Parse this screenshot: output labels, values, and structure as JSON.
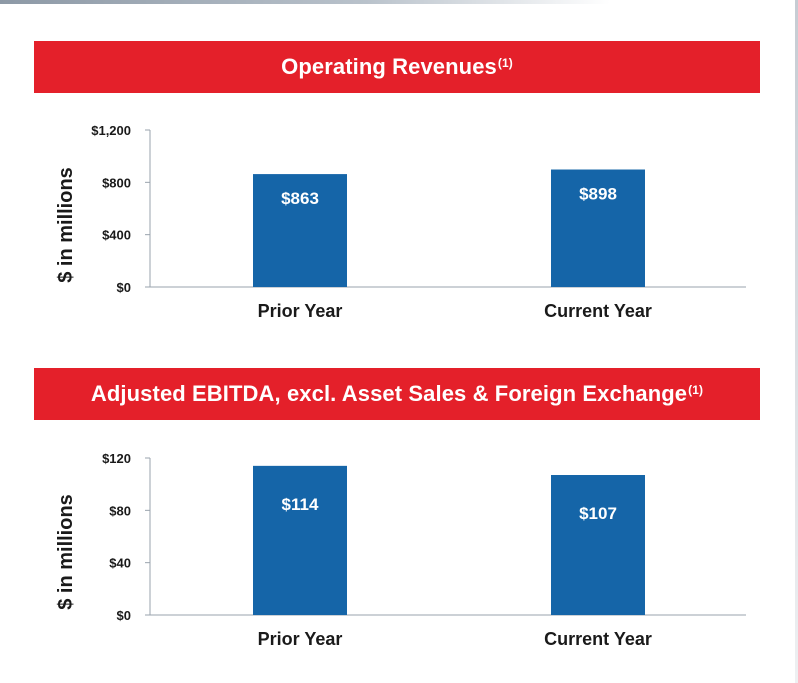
{
  "chart_data": [
    {
      "type": "bar",
      "title": "Operating Revenues",
      "title_note": "(1)",
      "categories": [
        "Prior Year",
        "Current Year"
      ],
      "values": [
        863,
        898
      ],
      "value_labels": [
        "$863",
        "$898"
      ],
      "ylabel": "$ in millions",
      "ylim": [
        0,
        1200
      ],
      "yticks": [
        0,
        400,
        800,
        1200
      ],
      "ytick_labels": [
        "$0",
        "$400",
        "$800",
        "$1,200"
      ],
      "bar_color": "#1565a8"
    },
    {
      "type": "bar",
      "title": "Adjusted EBITDA, excl. Asset Sales & Foreign Exchange",
      "title_note": "(1)",
      "categories": [
        "Prior Year",
        "Current Year"
      ],
      "values": [
        114,
        107
      ],
      "value_labels": [
        "$114",
        "$107"
      ],
      "ylabel": "$ in millions",
      "ylim": [
        0,
        120
      ],
      "yticks": [
        0,
        40,
        80,
        120
      ],
      "ytick_labels": [
        "$0",
        "$40",
        "$80",
        "$120"
      ],
      "bar_color": "#1565a8"
    }
  ],
  "colors": {
    "banner": "#e4202a",
    "bar": "#1565a8"
  }
}
